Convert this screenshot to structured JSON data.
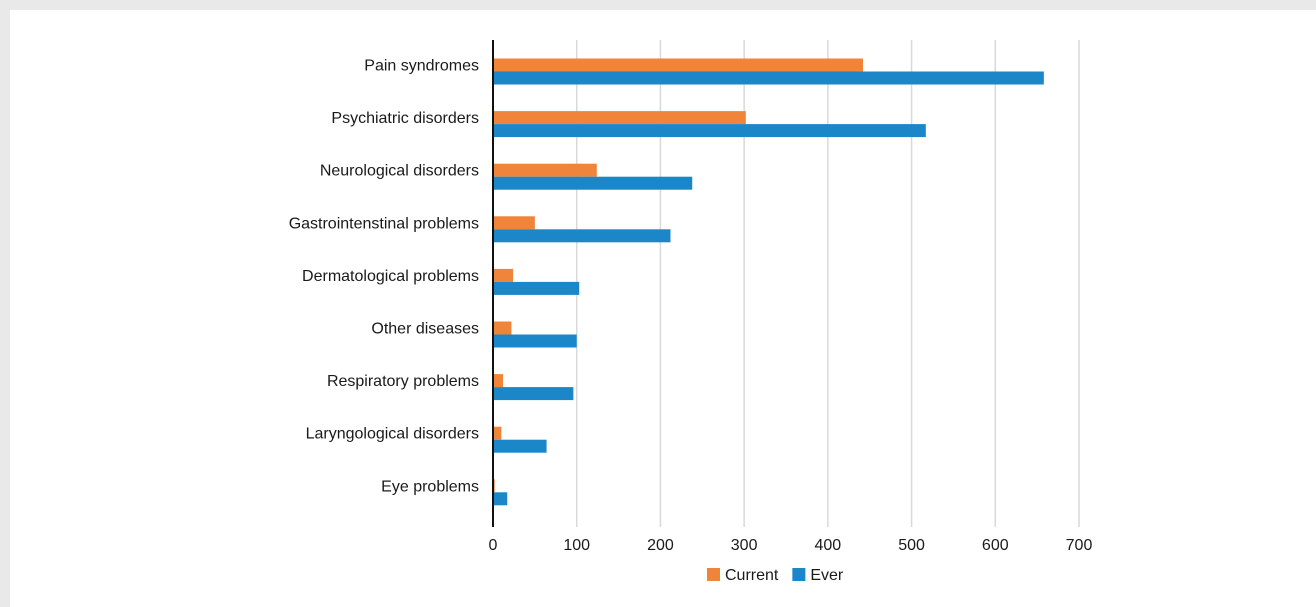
{
  "chart_data": {
    "type": "bar",
    "orientation": "horizontal",
    "title": "",
    "xlabel": "",
    "ylabel": "",
    "categories": [
      "Pain syndromes",
      "Psychiatric disorders",
      "Neurological disorders",
      "Gastrointenstinal problems",
      "Dermatological problems",
      "Other diseases",
      "Respiratory problems",
      "Laryngological disorders",
      "Eye problems"
    ],
    "series": [
      {
        "name": "Current",
        "color": "#f0843a",
        "values": [
          442,
          302,
          124,
          50,
          24,
          22,
          12,
          10,
          2
        ]
      },
      {
        "name": "Ever",
        "color": "#1b86c8",
        "values": [
          658,
          517,
          238,
          212,
          103,
          100,
          96,
          64,
          17
        ]
      }
    ],
    "xlim": [
      0,
      700
    ],
    "xticks": [
      0,
      100,
      200,
      300,
      400,
      500,
      600,
      700
    ],
    "grid": true,
    "legend_position": "bottom"
  }
}
